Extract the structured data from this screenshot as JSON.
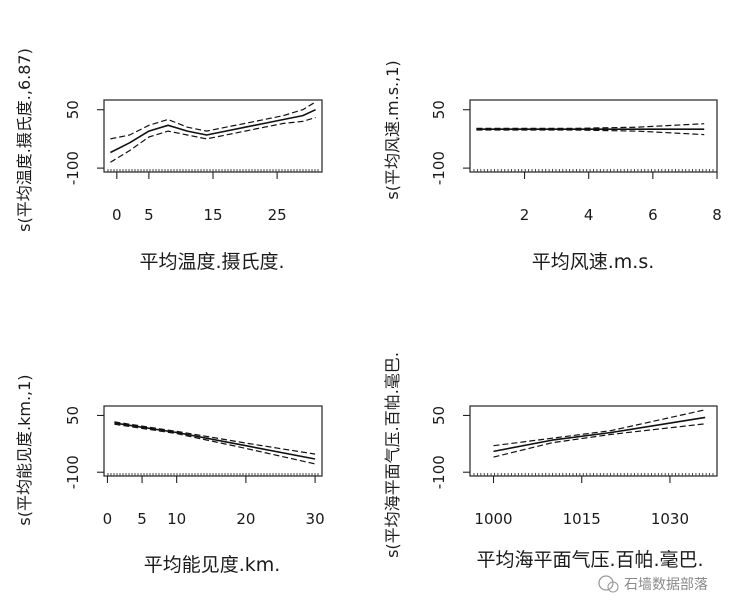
{
  "chart_data": [
    {
      "type": "line",
      "xlabel": "平均温度.摄氏度.",
      "ylabel": "s(平均温度.摄氏度.,6.87)",
      "xlim": [
        -2,
        32
      ],
      "ylim": [
        -110,
        75
      ],
      "xticks": [
        0,
        5,
        15,
        25
      ],
      "yticks": [
        50,
        -100
      ],
      "series": [
        {
          "role": "fit",
          "x": [
            -1,
            2,
            5,
            8,
            11,
            14,
            17,
            20,
            23,
            26,
            29,
            31
          ],
          "y": [
            -60,
            -35,
            -5,
            10,
            -5,
            -15,
            -5,
            5,
            15,
            25,
            35,
            50
          ]
        },
        {
          "role": "upper",
          "x": [
            -1,
            2,
            5,
            8,
            11,
            14,
            17,
            20,
            23,
            26,
            29,
            31
          ],
          "y": [
            -25,
            -15,
            10,
            25,
            5,
            -5,
            5,
            15,
            25,
            35,
            50,
            70
          ]
        },
        {
          "role": "lower",
          "x": [
            -1,
            2,
            5,
            8,
            11,
            14,
            17,
            20,
            23,
            26,
            29,
            31
          ],
          "y": [
            -85,
            -55,
            -20,
            -5,
            -15,
            -25,
            -15,
            -5,
            5,
            15,
            20,
            30
          ]
        }
      ]
    },
    {
      "type": "line",
      "xlabel": "平均风速.m.s.",
      "ylabel": "s(平均风速.m.s.,1)",
      "xlim": [
        0.3,
        8
      ],
      "ylim": [
        -110,
        75
      ],
      "xticks": [
        2,
        4,
        6,
        8
      ],
      "yticks": [
        50,
        -100
      ],
      "series": [
        {
          "role": "fit",
          "x": [
            0.5,
            7.6
          ],
          "y": [
            0,
            0
          ]
        },
        {
          "role": "upper",
          "x": [
            0.5,
            3.5,
            5.5,
            7.6
          ],
          "y": [
            2,
            2,
            5,
            14
          ]
        },
        {
          "role": "lower",
          "x": [
            0.5,
            3.5,
            5.5,
            7.6
          ],
          "y": [
            -2,
            -2,
            -5,
            -14
          ]
        }
      ]
    },
    {
      "type": "line",
      "xlabel": "平均能见度.km.",
      "ylabel": "s(平均能见度.km.,1)",
      "xlim": [
        -0.5,
        31
      ],
      "ylim": [
        -110,
        75
      ],
      "xticks": [
        0,
        5,
        10,
        20,
        30
      ],
      "yticks": [
        50,
        -100
      ],
      "series": [
        {
          "role": "fit",
          "x": [
            1,
            10,
            20,
            30
          ],
          "y": [
            30,
            5,
            -30,
            -65
          ]
        },
        {
          "role": "upper",
          "x": [
            1,
            10,
            20,
            30
          ],
          "y": [
            33,
            8,
            -23,
            -52
          ]
        },
        {
          "role": "lower",
          "x": [
            1,
            10,
            20,
            30
          ],
          "y": [
            27,
            2,
            -37,
            -78
          ]
        }
      ]
    },
    {
      "type": "line",
      "xlabel": "平均海平面气压.百帕.毫巴.",
      "ylabel": "s(平均海平面气压.百帕.毫巴.",
      "xlim": [
        996,
        1038
      ],
      "ylim": [
        -110,
        75
      ],
      "xticks": [
        1000,
        1015,
        1030
      ],
      "yticks": [
        50,
        -100
      ],
      "series": [
        {
          "role": "fit",
          "x": [
            1000,
            1010,
            1020,
            1036
          ],
          "y": [
            -45,
            -15,
            5,
            45
          ]
        },
        {
          "role": "upper",
          "x": [
            1000,
            1010,
            1020,
            1036
          ],
          "y": [
            -30,
            -10,
            10,
            65
          ]
        },
        {
          "role": "lower",
          "x": [
            1000,
            1010,
            1020,
            1036
          ],
          "y": [
            -60,
            -22,
            0,
            28
          ]
        }
      ]
    }
  ],
  "watermark": "石墙数据部落"
}
